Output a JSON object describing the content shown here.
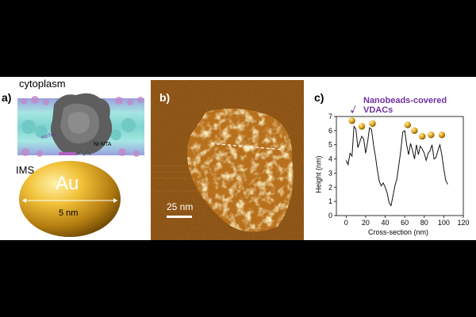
{
  "panel_a": {
    "label": "a)",
    "cytoplasm": "cytoplasm",
    "ims": "IMS",
    "his_tag": "HisTag",
    "ni_nta": "Ni-NTA",
    "bead_label": "Au",
    "diameter": "5 nm"
  },
  "panel_b": {
    "label": "b)",
    "scale_bar": "25 nm"
  },
  "panel_c": {
    "label": "c)",
    "annotation": "Nanobeads-covered VDACs",
    "colors": {
      "line": "#111111",
      "annotation": "#7030a0",
      "bead": "#e0a520"
    },
    "chart_data": {
      "type": "line",
      "xlabel": "Cross-section (nm)",
      "ylabel": "Height (nm)",
      "xlim": [
        -10,
        120
      ],
      "ylim": [
        0,
        7
      ],
      "xticks": [
        0,
        20,
        40,
        60,
        80,
        100,
        120
      ],
      "yticks": [
        0,
        1,
        2,
        3,
        4,
        5,
        6,
        7
      ],
      "x": [
        0,
        2,
        4,
        6,
        8,
        10,
        12,
        14,
        16,
        18,
        20,
        22,
        24,
        26,
        28,
        30,
        32,
        34,
        36,
        38,
        40,
        42,
        44,
        46,
        48,
        50,
        52,
        54,
        56,
        58,
        60,
        62,
        64,
        66,
        68,
        70,
        72,
        74,
        76,
        78,
        80,
        82,
        84,
        86,
        88,
        90,
        92,
        94,
        96,
        98,
        100,
        102,
        104
      ],
      "y": [
        3.9,
        3.6,
        4.4,
        4.2,
        6.3,
        6.1,
        4.8,
        5.2,
        5.6,
        5.4,
        4.4,
        5.2,
        6.2,
        6.1,
        5.0,
        4.2,
        3.2,
        2.4,
        2.1,
        2.3,
        2.0,
        1.6,
        0.9,
        0.7,
        1.4,
        2.1,
        2.6,
        3.6,
        4.6,
        5.9,
        6.0,
        5.0,
        4.3,
        5.1,
        4.6,
        4.0,
        5.0,
        4.3,
        4.9,
        4.7,
        4.4,
        3.9,
        4.4,
        4.6,
        5.0,
        4.0,
        4.1,
        4.6,
        5.0,
        4.3,
        3.3,
        2.5,
        2.2
      ],
      "bead_markers": [
        {
          "x": 6,
          "y": 6.7
        },
        {
          "x": 16,
          "y": 6.3
        },
        {
          "x": 27,
          "y": 6.5
        },
        {
          "x": 63,
          "y": 6.4
        },
        {
          "x": 70,
          "y": 6.0
        },
        {
          "x": 78,
          "y": 5.6
        },
        {
          "x": 87,
          "y": 5.7
        },
        {
          "x": 98,
          "y": 5.7
        }
      ]
    }
  }
}
